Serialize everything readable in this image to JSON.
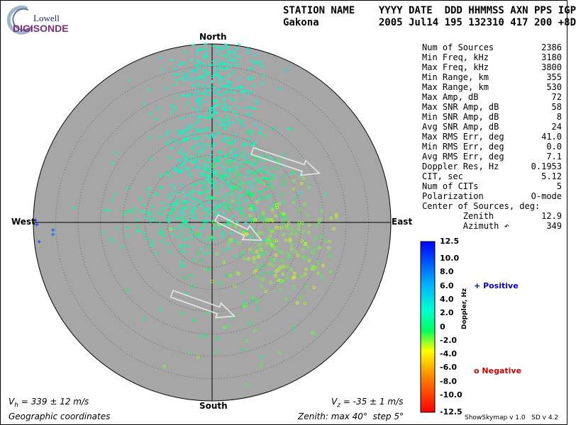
{
  "logo": {
    "top": "Lowell",
    "bottom": "DIGISONDE"
  },
  "header": {
    "line1": "STATION NAME    YYYY DATE  DDD HHMMSS AXN PPS IGP",
    "line2": "Gakona          2005 Jul14 195 132310 417 200 +8D"
  },
  "params": [
    {
      "label": "Num of Sources",
      "value": "2386"
    },
    {
      "label": "Min Freq, kHz",
      "value": "3180"
    },
    {
      "label": "Max Freq, kHz",
      "value": "3800"
    },
    {
      "label": "Min Range, km",
      "value": "355"
    },
    {
      "label": "Max Range, km",
      "value": "530"
    },
    {
      "label": "Max Amp, dB",
      "value": "72"
    },
    {
      "label": "Max SNR Amp, dB",
      "value": "58"
    },
    {
      "label": "Min SNR Amp, dB",
      "value": "8"
    },
    {
      "label": "Avg SNR Amp, dB",
      "value": "24"
    },
    {
      "label": "Max RMS Err, deg",
      "value": "41.0"
    },
    {
      "label": "Min RMS Err, deg",
      "value": "0.0"
    },
    {
      "label": "Avg RMS Err, deg",
      "value": "7.1"
    },
    {
      "label": "Doppler Res, Hz",
      "value": "0.1953"
    },
    {
      "label": "CIT, sec",
      "value": "5.12"
    },
    {
      "label": "Num of CITs",
      "value": "5"
    },
    {
      "label": "Polarization",
      "value": "O-mode"
    },
    {
      "label": "Center of Sources, deg:",
      "value": ""
    },
    {
      "label": "        Zenith",
      "value": "12.9"
    },
    {
      "label": "        Azimuth ↶",
      "value": "349"
    }
  ],
  "directions": {
    "north": "North",
    "south": "South",
    "east": "East",
    "west": "West"
  },
  "footer": {
    "vh_sym": "V",
    "vh_sub": "h",
    "vh_rest": " = 339 ± 12 m/s",
    "vz_sym": "V",
    "vz_sub": "z",
    "vz_rest": " = -35 ± 1 m/s",
    "coords": "Geographic coordinates",
    "zenith": "Zenith: max 40°  step 5°",
    "version": "ShowSkymap v 1.0   SD v 4.2"
  },
  "colorbar": {
    "ticks": [
      "12.5",
      "10.0",
      "8.0",
      "6.0",
      "4.0",
      "2.0",
      "0",
      "-2.0",
      "-4.0",
      "-6.0",
      "-8.0",
      "-10.0",
      "-12.5"
    ],
    "axis_label": "Doppler, Hz",
    "positive_label": "Positive",
    "negative_label": "Negative",
    "range": [
      -12.5,
      12.5
    ]
  },
  "chart_data": {
    "type": "scatter",
    "projection": "polar-skymap",
    "zenith_max_deg": 40,
    "zenith_step_deg": 5,
    "x_axis": "east-west zenith component, deg",
    "y_axis": "north-south zenith component, deg",
    "clusters": [
      {
        "center": [
          0.5,
          31
        ],
        "spread": [
          6,
          9
        ],
        "count": 380,
        "doppler": [
          1.5,
          3.5
        ],
        "marker": "plus"
      },
      {
        "center": [
          0.5,
          12
        ],
        "spread": [
          7,
          7
        ],
        "count": 300,
        "doppler": [
          1.0,
          3.0
        ],
        "marker": "plus"
      },
      {
        "center": [
          -8,
          0
        ],
        "spread": [
          8,
          4
        ],
        "count": 160,
        "doppler": [
          0.5,
          2.0
        ],
        "marker": "plus"
      },
      {
        "center": [
          8,
          10
        ],
        "spread": [
          5,
          6
        ],
        "count": 120,
        "doppler": [
          -1.0,
          1.0
        ],
        "marker": "circle"
      },
      {
        "center": [
          15,
          -5
        ],
        "spread": [
          6,
          6
        ],
        "count": 200,
        "doppler": [
          -3.0,
          -1.0
        ],
        "marker": "circle"
      },
      {
        "center": [
          2,
          -20
        ],
        "spread": [
          9,
          8
        ],
        "count": 50,
        "doppler": [
          -2.0,
          1.0
        ],
        "marker": "circle"
      }
    ],
    "outliers": [
      {
        "x": -39.5,
        "y": 0.5,
        "doppler": 11.0
      },
      {
        "x": -39.2,
        "y": -0.5,
        "doppler": 10.5
      },
      {
        "x": -35.6,
        "y": -1.7,
        "doppler": 9.5
      },
      {
        "x": -35.6,
        "y": -2.7,
        "doppler": 9.0
      },
      {
        "x": -38.7,
        "y": -4.3,
        "doppler": 10.0
      }
    ],
    "velocity_arrows": [
      {
        "from": [
          9,
          16
        ],
        "to": [
          24,
          11
        ]
      },
      {
        "from": [
          1,
          1
        ],
        "to": [
          11,
          -4
        ]
      },
      {
        "from": [
          -9,
          -16
        ],
        "to": [
          5,
          -21
        ]
      }
    ]
  }
}
